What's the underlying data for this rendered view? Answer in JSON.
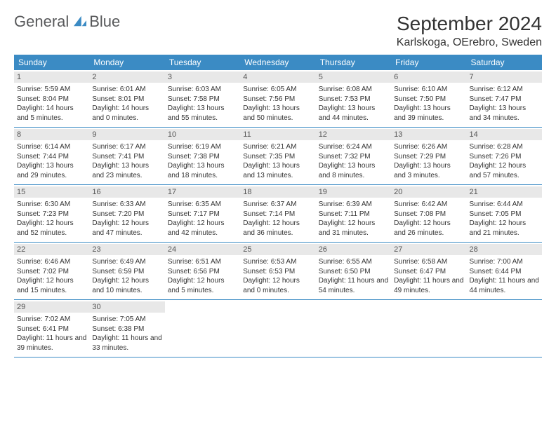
{
  "brand": {
    "name1": "General",
    "name2": "Blue",
    "logo_color": "#3b8bc4",
    "text_color": "#58595b"
  },
  "title": "September 2024",
  "location": "Karlskoga, OErebro, Sweden",
  "colors": {
    "header_bg": "#3b8bc4",
    "header_text": "#ffffff",
    "daynum_bg": "#e8e8e8",
    "divider": "#3b8bc4",
    "body_text": "#333333"
  },
  "fonts": {
    "title_size": 28,
    "location_size": 16,
    "header_size": 12,
    "daynum_size": 11,
    "info_size": 10
  },
  "day_names": [
    "Sunday",
    "Monday",
    "Tuesday",
    "Wednesday",
    "Thursday",
    "Friday",
    "Saturday"
  ],
  "days": [
    {
      "n": "1",
      "sunrise": "5:59 AM",
      "sunset": "8:04 PM",
      "daylight": "14 hours and 5 minutes."
    },
    {
      "n": "2",
      "sunrise": "6:01 AM",
      "sunset": "8:01 PM",
      "daylight": "14 hours and 0 minutes."
    },
    {
      "n": "3",
      "sunrise": "6:03 AM",
      "sunset": "7:58 PM",
      "daylight": "13 hours and 55 minutes."
    },
    {
      "n": "4",
      "sunrise": "6:05 AM",
      "sunset": "7:56 PM",
      "daylight": "13 hours and 50 minutes."
    },
    {
      "n": "5",
      "sunrise": "6:08 AM",
      "sunset": "7:53 PM",
      "daylight": "13 hours and 44 minutes."
    },
    {
      "n": "6",
      "sunrise": "6:10 AM",
      "sunset": "7:50 PM",
      "daylight": "13 hours and 39 minutes."
    },
    {
      "n": "7",
      "sunrise": "6:12 AM",
      "sunset": "7:47 PM",
      "daylight": "13 hours and 34 minutes."
    },
    {
      "n": "8",
      "sunrise": "6:14 AM",
      "sunset": "7:44 PM",
      "daylight": "13 hours and 29 minutes."
    },
    {
      "n": "9",
      "sunrise": "6:17 AM",
      "sunset": "7:41 PM",
      "daylight": "13 hours and 23 minutes."
    },
    {
      "n": "10",
      "sunrise": "6:19 AM",
      "sunset": "7:38 PM",
      "daylight": "13 hours and 18 minutes."
    },
    {
      "n": "11",
      "sunrise": "6:21 AM",
      "sunset": "7:35 PM",
      "daylight": "13 hours and 13 minutes."
    },
    {
      "n": "12",
      "sunrise": "6:24 AM",
      "sunset": "7:32 PM",
      "daylight": "13 hours and 8 minutes."
    },
    {
      "n": "13",
      "sunrise": "6:26 AM",
      "sunset": "7:29 PM",
      "daylight": "13 hours and 3 minutes."
    },
    {
      "n": "14",
      "sunrise": "6:28 AM",
      "sunset": "7:26 PM",
      "daylight": "12 hours and 57 minutes."
    },
    {
      "n": "15",
      "sunrise": "6:30 AM",
      "sunset": "7:23 PM",
      "daylight": "12 hours and 52 minutes."
    },
    {
      "n": "16",
      "sunrise": "6:33 AM",
      "sunset": "7:20 PM",
      "daylight": "12 hours and 47 minutes."
    },
    {
      "n": "17",
      "sunrise": "6:35 AM",
      "sunset": "7:17 PM",
      "daylight": "12 hours and 42 minutes."
    },
    {
      "n": "18",
      "sunrise": "6:37 AM",
      "sunset": "7:14 PM",
      "daylight": "12 hours and 36 minutes."
    },
    {
      "n": "19",
      "sunrise": "6:39 AM",
      "sunset": "7:11 PM",
      "daylight": "12 hours and 31 minutes."
    },
    {
      "n": "20",
      "sunrise": "6:42 AM",
      "sunset": "7:08 PM",
      "daylight": "12 hours and 26 minutes."
    },
    {
      "n": "21",
      "sunrise": "6:44 AM",
      "sunset": "7:05 PM",
      "daylight": "12 hours and 21 minutes."
    },
    {
      "n": "22",
      "sunrise": "6:46 AM",
      "sunset": "7:02 PM",
      "daylight": "12 hours and 15 minutes."
    },
    {
      "n": "23",
      "sunrise": "6:49 AM",
      "sunset": "6:59 PM",
      "daylight": "12 hours and 10 minutes."
    },
    {
      "n": "24",
      "sunrise": "6:51 AM",
      "sunset": "6:56 PM",
      "daylight": "12 hours and 5 minutes."
    },
    {
      "n": "25",
      "sunrise": "6:53 AM",
      "sunset": "6:53 PM",
      "daylight": "12 hours and 0 minutes."
    },
    {
      "n": "26",
      "sunrise": "6:55 AM",
      "sunset": "6:50 PM",
      "daylight": "11 hours and 54 minutes."
    },
    {
      "n": "27",
      "sunrise": "6:58 AM",
      "sunset": "6:47 PM",
      "daylight": "11 hours and 49 minutes."
    },
    {
      "n": "28",
      "sunrise": "7:00 AM",
      "sunset": "6:44 PM",
      "daylight": "11 hours and 44 minutes."
    },
    {
      "n": "29",
      "sunrise": "7:02 AM",
      "sunset": "6:41 PM",
      "daylight": "11 hours and 39 minutes."
    },
    {
      "n": "30",
      "sunrise": "7:05 AM",
      "sunset": "6:38 PM",
      "daylight": "11 hours and 33 minutes."
    }
  ],
  "labels": {
    "sunrise": "Sunrise:",
    "sunset": "Sunset:",
    "daylight": "Daylight:"
  },
  "layout": {
    "cols": 7,
    "rows": 5,
    "trailing_empty": 5
  }
}
